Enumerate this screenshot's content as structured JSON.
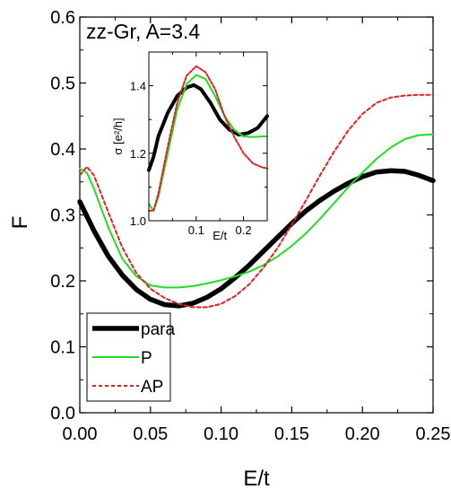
{
  "chart_data": [
    {
      "type": "line",
      "title": "zz-Gr, A=3.4",
      "xlabel": "E/t",
      "ylabel": "F",
      "xlim": [
        0,
        0.25
      ],
      "ylim": [
        0,
        0.6
      ],
      "xticks": [
        "0.00",
        "0.05",
        "0.10",
        "0.15",
        "0.20",
        "0.25"
      ],
      "yticks": [
        "0.0",
        "0.1",
        "0.2",
        "0.3",
        "0.4",
        "0.5",
        "0.6"
      ],
      "legend_position": "bottom-left",
      "series": [
        {
          "name": "para",
          "color": "#000000",
          "dash": "solid",
          "weight": "thick",
          "points": [
            [
              0.0,
              0.32
            ],
            [
              0.01,
              0.276
            ],
            [
              0.02,
              0.238
            ],
            [
              0.03,
              0.209
            ],
            [
              0.04,
              0.187
            ],
            [
              0.05,
              0.172
            ],
            [
              0.06,
              0.164
            ],
            [
              0.07,
              0.162
            ],
            [
              0.08,
              0.166
            ],
            [
              0.09,
              0.175
            ],
            [
              0.1,
              0.188
            ],
            [
              0.11,
              0.205
            ],
            [
              0.12,
              0.224
            ],
            [
              0.13,
              0.245
            ],
            [
              0.14,
              0.266
            ],
            [
              0.15,
              0.287
            ],
            [
              0.16,
              0.306
            ],
            [
              0.17,
              0.322
            ],
            [
              0.18,
              0.336
            ],
            [
              0.19,
              0.348
            ],
            [
              0.2,
              0.358
            ],
            [
              0.21,
              0.365
            ],
            [
              0.22,
              0.367
            ],
            [
              0.23,
              0.366
            ],
            [
              0.24,
              0.36
            ],
            [
              0.25,
              0.352
            ]
          ]
        },
        {
          "name": "P",
          "color": "#22dd22",
          "dash": "solid",
          "weight": "normal",
          "points": [
            [
              0.0,
              0.37
            ],
            [
              0.005,
              0.364
            ],
            [
              0.01,
              0.34
            ],
            [
              0.02,
              0.282
            ],
            [
              0.03,
              0.234
            ],
            [
              0.04,
              0.207
            ],
            [
              0.05,
              0.193
            ],
            [
              0.06,
              0.19
            ],
            [
              0.07,
              0.19
            ],
            [
              0.08,
              0.192
            ],
            [
              0.09,
              0.196
            ],
            [
              0.1,
              0.201
            ],
            [
              0.11,
              0.207
            ],
            [
              0.12,
              0.214
            ],
            [
              0.13,
              0.224
            ],
            [
              0.14,
              0.237
            ],
            [
              0.15,
              0.253
            ],
            [
              0.16,
              0.272
            ],
            [
              0.17,
              0.294
            ],
            [
              0.18,
              0.318
            ],
            [
              0.19,
              0.342
            ],
            [
              0.2,
              0.364
            ],
            [
              0.21,
              0.385
            ],
            [
              0.22,
              0.402
            ],
            [
              0.23,
              0.415
            ],
            [
              0.24,
              0.421
            ],
            [
              0.25,
              0.422
            ]
          ]
        },
        {
          "name": "AP",
          "color": "#dd2222",
          "dash": "dotted",
          "weight": "normal",
          "points": [
            [
              0.0,
              0.36
            ],
            [
              0.005,
              0.373
            ],
            [
              0.01,
              0.36
            ],
            [
              0.02,
              0.305
            ],
            [
              0.03,
              0.251
            ],
            [
              0.04,
              0.212
            ],
            [
              0.05,
              0.188
            ],
            [
              0.06,
              0.174
            ],
            [
              0.07,
              0.165
            ],
            [
              0.08,
              0.16
            ],
            [
              0.09,
              0.16
            ],
            [
              0.1,
              0.165
            ],
            [
              0.11,
              0.177
            ],
            [
              0.12,
              0.195
            ],
            [
              0.13,
              0.22
            ],
            [
              0.14,
              0.25
            ],
            [
              0.15,
              0.285
            ],
            [
              0.16,
              0.322
            ],
            [
              0.17,
              0.36
            ],
            [
              0.18,
              0.396
            ],
            [
              0.19,
              0.428
            ],
            [
              0.2,
              0.453
            ],
            [
              0.21,
              0.47
            ],
            [
              0.22,
              0.478
            ],
            [
              0.23,
              0.481
            ],
            [
              0.24,
              0.482
            ],
            [
              0.25,
              0.482
            ]
          ]
        }
      ]
    },
    {
      "type": "line",
      "title": "",
      "xlabel": "E/t",
      "ylabel": "σ [e²/h]",
      "xlim": [
        0,
        0.25
      ],
      "ylim": [
        1.0,
        1.5
      ],
      "xticks": [
        "0.1",
        "0.2"
      ],
      "yticks": [
        "1.0",
        "1.2",
        "1.4"
      ],
      "series": [
        {
          "name": "para",
          "color": "#000000",
          "dash": "solid",
          "weight": "thick",
          "points": [
            [
              0.0,
              1.15
            ],
            [
              0.01,
              1.19
            ],
            [
              0.02,
              1.25
            ],
            [
              0.04,
              1.32
            ],
            [
              0.06,
              1.37
            ],
            [
              0.08,
              1.395
            ],
            [
              0.095,
              1.402
            ],
            [
              0.11,
              1.39
            ],
            [
              0.13,
              1.35
            ],
            [
              0.15,
              1.3
            ],
            [
              0.17,
              1.27
            ],
            [
              0.19,
              1.255
            ],
            [
              0.21,
              1.26
            ],
            [
              0.23,
              1.275
            ],
            [
              0.25,
              1.31
            ]
          ]
        },
        {
          "name": "P",
          "color": "#22dd22",
          "dash": "solid",
          "weight": "normal",
          "points": [
            [
              0.0,
              1.05
            ],
            [
              0.01,
              1.03
            ],
            [
              0.02,
              1.07
            ],
            [
              0.04,
              1.2
            ],
            [
              0.06,
              1.33
            ],
            [
              0.08,
              1.405
            ],
            [
              0.1,
              1.432
            ],
            [
              0.12,
              1.42
            ],
            [
              0.14,
              1.37
            ],
            [
              0.16,
              1.31
            ],
            [
              0.18,
              1.27
            ],
            [
              0.2,
              1.25
            ],
            [
              0.22,
              1.248
            ],
            [
              0.24,
              1.25
            ],
            [
              0.25,
              1.25
            ]
          ]
        },
        {
          "name": "AP",
          "color": "#dd2222",
          "dash": "dotted",
          "weight": "normal",
          "points": [
            [
              0.0,
              1.03
            ],
            [
              0.01,
              1.03
            ],
            [
              0.02,
              1.08
            ],
            [
              0.04,
              1.22
            ],
            [
              0.06,
              1.35
            ],
            [
              0.08,
              1.43
            ],
            [
              0.1,
              1.458
            ],
            [
              0.12,
              1.44
            ],
            [
              0.14,
              1.39
            ],
            [
              0.16,
              1.31
            ],
            [
              0.18,
              1.25
            ],
            [
              0.2,
              1.2
            ],
            [
              0.22,
              1.17
            ],
            [
              0.24,
              1.158
            ],
            [
              0.25,
              1.155
            ]
          ]
        }
      ]
    }
  ]
}
